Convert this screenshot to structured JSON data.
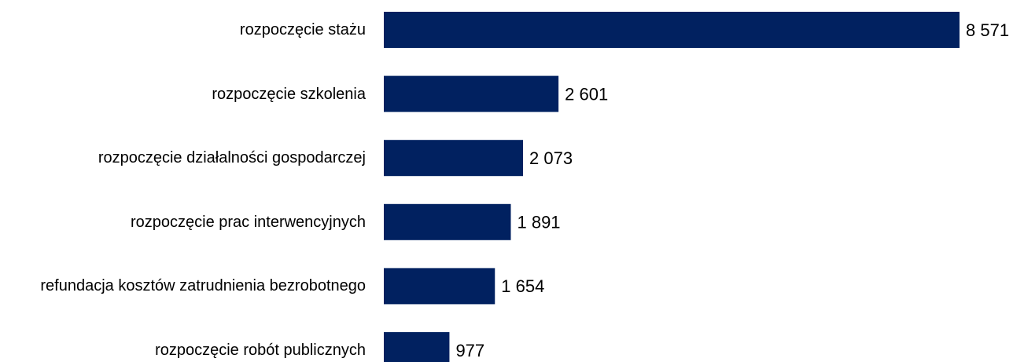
{
  "chart_data": {
    "type": "bar",
    "orientation": "horizontal",
    "categories": [
      "rozpoczęcie stażu",
      "rozpoczęcie szkolenia",
      "rozpoczęcie działalności gospodarczej",
      "rozpoczęcie prac interwencyjnych",
      "refundacja kosztów zatrudnienia bezrobotnego",
      "rozpoczęcie robót publicznych"
    ],
    "values": [
      8571,
      2601,
      2073,
      1891,
      1654,
      977
    ],
    "value_labels": [
      "8 571",
      "2 601",
      "2 073",
      "1 891",
      "1 654",
      "977"
    ],
    "color": "#012160"
  }
}
